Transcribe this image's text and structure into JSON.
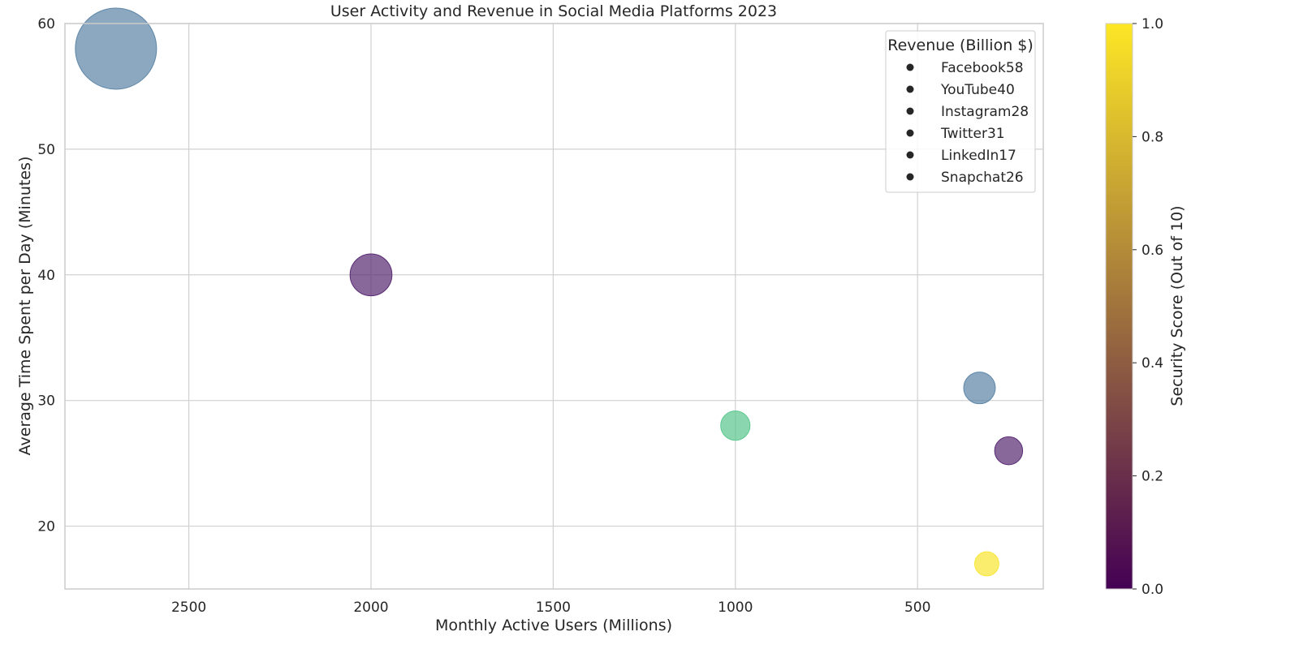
{
  "chart_data": {
    "type": "scatter",
    "title": "User Activity and Revenue in Social Media Platforms 2023",
    "xlabel": "Monthly Active Users (Millions)",
    "ylabel": "Average Time Spent per Day (Minutes)",
    "x_inverted": true,
    "xlim": [
      2840,
      155
    ],
    "ylim": [
      15,
      60
    ],
    "x_ticks": [
      2500,
      2000,
      1500,
      1000,
      500
    ],
    "y_ticks": [
      20,
      30,
      40,
      50,
      60
    ],
    "grid": true,
    "points": [
      {
        "label": "Facebook",
        "x": 2700,
        "y": 58,
        "size": 58,
        "color": "#5f87a8"
      },
      {
        "label": "YouTube",
        "x": 2000,
        "y": 40,
        "size": 40,
        "color": "#5a2c75"
      },
      {
        "label": "Instagram",
        "x": 1000,
        "y": 28,
        "size": 28,
        "color": "#5dc890"
      },
      {
        "label": "Twitter",
        "x": 330,
        "y": 31,
        "size": 31,
        "color": "#5f87a8"
      },
      {
        "label": "LinkedIn",
        "x": 310,
        "y": 17,
        "size": 17,
        "color": "#f8e635"
      },
      {
        "label": "Snapchat",
        "x": 250,
        "y": 26,
        "size": 26,
        "color": "#5a2c75"
      }
    ],
    "legend": {
      "title": "Revenue (Billion $)",
      "position": "top-right",
      "entries": [
        "Facebook58",
        "YouTube40",
        "Instagram28",
        "Twitter31",
        "LinkedIn17",
        "Snapchat26"
      ]
    },
    "colorbar": {
      "label": "Security Score (Out of 10)",
      "range": [
        0,
        1
      ],
      "ticks": [
        "0.0",
        "0.2",
        "0.4",
        "0.6",
        "0.8",
        "1.0"
      ],
      "colormap": [
        "#440154",
        "#482878",
        "#3e4989",
        "#31688e",
        "#26828e",
        "#1f9e89",
        "#35b779",
        "#6ece58",
        "#b5de2b",
        "#fde725"
      ]
    }
  }
}
